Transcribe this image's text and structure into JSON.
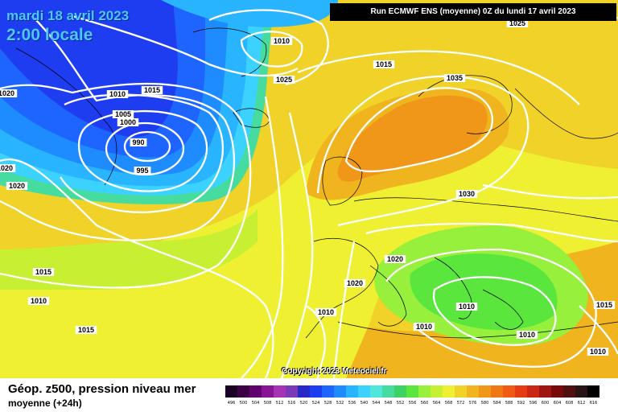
{
  "header": {
    "date": "mardi 18 avril 2023",
    "time": "2:00 locale",
    "run_info": "Run ECMWF ENS (moyenne) 0Z du lundi 17 avril 2023"
  },
  "copyright": "Copyright 2023 Meteociel.fr",
  "footer": {
    "title": "Géop. z500, pression niveau mer",
    "subtitle": "moyenne  (+24h)"
  },
  "isobar_labels": [
    "1025",
    "1010",
    "1015",
    "1025",
    "1035",
    "1015",
    "1010",
    "1005",
    "1000",
    "990",
    "995",
    "1020",
    "1020",
    "1030",
    "1020",
    "1015",
    "1010",
    "1020",
    "1010",
    "1015",
    "1010",
    "1010",
    "1010",
    "1015",
    "1010",
    "1020"
  ],
  "legend": {
    "labels": [
      "496",
      "500",
      "504",
      "508",
      "512",
      "516",
      "520",
      "524",
      "528",
      "532",
      "536",
      "540",
      "544",
      "548",
      "552",
      "556",
      "560",
      "564",
      "568",
      "572",
      "576",
      "580",
      "584",
      "588",
      "592",
      "596",
      "600",
      "604",
      "608",
      "612",
      "616"
    ],
    "colors": [
      "#1a0022",
      "#3c0045",
      "#62006e",
      "#8a1496",
      "#a832b4",
      "#7a3ab8",
      "#2828c8",
      "#1e3cf0",
      "#1e64ff",
      "#1e8cff",
      "#28b4ff",
      "#3cd2ff",
      "#50e6dc",
      "#46dca0",
      "#3cd264",
      "#5ae63c",
      "#96f03c",
      "#c8f032",
      "#f0f032",
      "#f0d228",
      "#f0b41e",
      "#f09619",
      "#f07814",
      "#f05a14",
      "#e63c14",
      "#c82814",
      "#a01414",
      "#780a0a",
      "#501010",
      "#281414",
      "#000000"
    ]
  },
  "map_colors": {
    "deep_blue": "#1e3cf0",
    "blue": "#1e64ff",
    "sky": "#28b4ff",
    "cyan": "#3cd2ff",
    "teal": "#46dca0",
    "green": "#5ae63c",
    "yellow": "#f0f032",
    "gold": "#f0d228",
    "orange": "#f0b41e",
    "dark_orange": "#f09619"
  }
}
